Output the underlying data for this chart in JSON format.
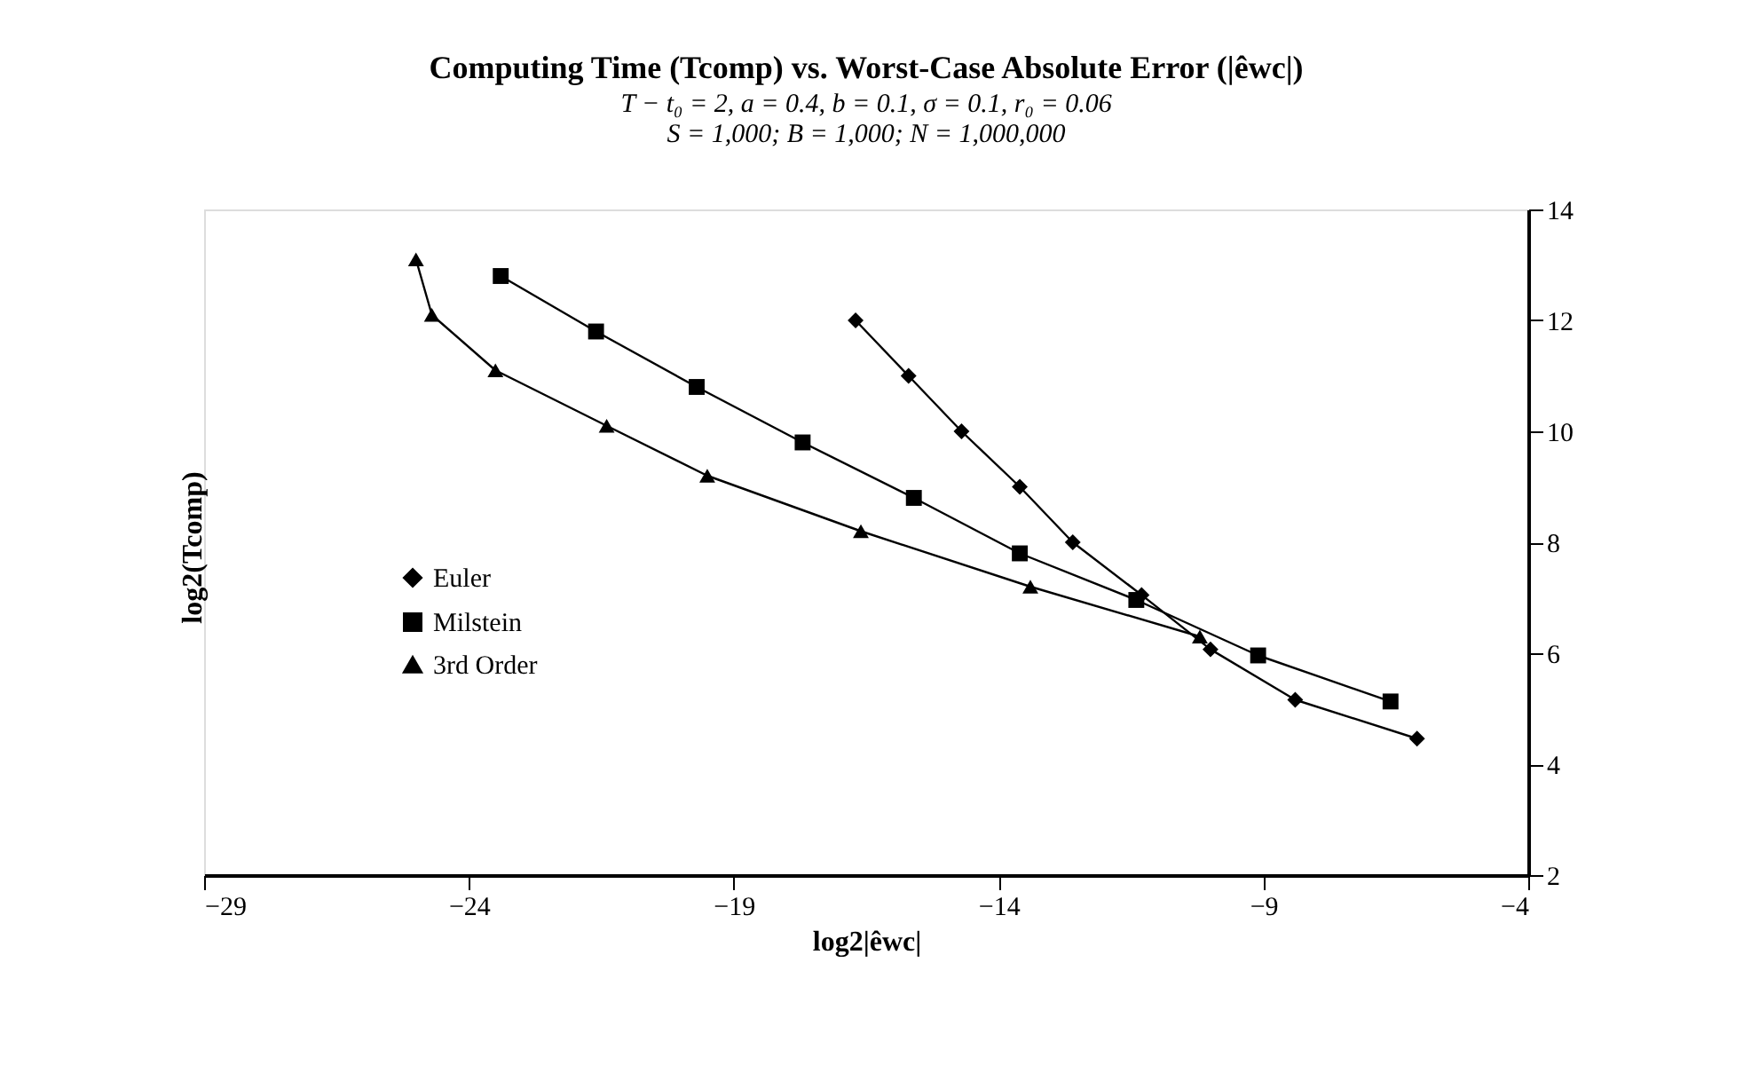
{
  "chart_data": {
    "type": "line",
    "title": "Computing Time (Tcomp) vs. Worst-Case Absolute Error (|êwc|)",
    "subtitle": [
      "T − t₀ = 2,  a = 0.4,  b = 0.1,  σ = 0.1,  r₀ = 0.06",
      "S = 1,000;  B = 1,000;  N = 1,000,000"
    ],
    "xlabel": "log2|êwc|",
    "ylabel": "log2(Tcomp)",
    "xlim": [
      -29,
      -4
    ],
    "xticks": [
      -29,
      -24,
      -19,
      -14,
      -9,
      -4
    ],
    "ylim": [
      2,
      14
    ],
    "yticks": [
      2,
      4,
      6,
      8,
      10,
      12,
      14
    ],
    "grid": false,
    "legend": "bottom left",
    "series": [
      {
        "name": "Euler",
        "color": "#000000",
        "marker": "diamond",
        "x": [
          -16.7,
          -15.7,
          -14.7,
          -13.6,
          -12.6,
          -11.3,
          -10.0,
          -8.4,
          -6.1
        ],
        "values": [
          12.0,
          11.0,
          10.0,
          9.0,
          8.0,
          7.05,
          6.07,
          5.16,
          4.46
        ]
      },
      {
        "name": "Milstein",
        "color": "#000000",
        "marker": "square",
        "x": [
          -23.4,
          -21.6,
          -19.7,
          -17.7,
          -15.6,
          -13.6,
          -11.4,
          -9.1,
          -6.6
        ],
        "values": [
          12.8,
          11.8,
          10.8,
          9.8,
          8.8,
          7.8,
          6.96,
          5.96,
          5.13
        ]
      },
      {
        "name": "3rd Order",
        "color": "#000000",
        "marker": "triangle",
        "x": [
          -25.0,
          -24.7,
          -23.5,
          -21.4,
          -19.5,
          -16.6,
          -13.4,
          -10.2
        ],
        "values": [
          13.1,
          12.1,
          11.1,
          10.1,
          9.2,
          8.2,
          7.2,
          6.3
        ]
      }
    ]
  }
}
